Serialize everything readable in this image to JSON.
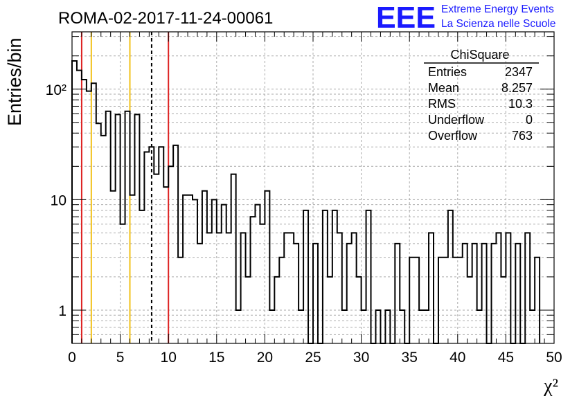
{
  "chart_data": {
    "type": "histogram",
    "title": "ROMA-02-2017-11-24-00061",
    "xlabel": "χ²",
    "ylabel": "Entries/bin",
    "xlim": [
      0,
      50
    ],
    "ylim": [
      0.5,
      330
    ],
    "yscale": "log",
    "grid": true,
    "bin_width": 0.5,
    "x_ticks": [
      0,
      5,
      10,
      15,
      20,
      25,
      30,
      35,
      40,
      45,
      50
    ],
    "x_tick_labels": [
      "0",
      "5",
      "10",
      "15",
      "20",
      "25",
      "30",
      "35",
      "40",
      "45",
      "50"
    ],
    "y_ticks": [
      1,
      10,
      100
    ],
    "y_tick_labels": [
      "1",
      "10",
      "10²"
    ],
    "counts": [
      180,
      148,
      122,
      96,
      113,
      49,
      38,
      63,
      12,
      59,
      6,
      63,
      11,
      59,
      8,
      27,
      30,
      17,
      30,
      13,
      20,
      31,
      3,
      11,
      11,
      10,
      4,
      12,
      5,
      10,
      5,
      9,
      5,
      17,
      1,
      5,
      2,
      7,
      9,
      6,
      12,
      1,
      2,
      3,
      5,
      5,
      4,
      1,
      8,
      0,
      4,
      0,
      8,
      2,
      8,
      5,
      1,
      4,
      5,
      2,
      1,
      8,
      0,
      1,
      0,
      1,
      0,
      4,
      1,
      0,
      3,
      3,
      1,
      1,
      5,
      0,
      3,
      3,
      8,
      3,
      3,
      4,
      2,
      4,
      1,
      4,
      0,
      4,
      5,
      2,
      5,
      0,
      4,
      0,
      5,
      1,
      3
    ],
    "vertical_lines": [
      {
        "x": 1,
        "color": "#dd2222",
        "style": "solid"
      },
      {
        "x": 2,
        "color": "#f2c11a",
        "style": "solid"
      },
      {
        "x": 6,
        "color": "#f2c11a",
        "style": "solid"
      },
      {
        "x": 8.257,
        "color": "#000000",
        "style": "dashed"
      },
      {
        "x": 10,
        "color": "#dd2222",
        "style": "solid"
      }
    ],
    "stats": {
      "title": "ChiSquare",
      "rows": [
        {
          "label": "Entries",
          "value": "2347"
        },
        {
          "label": "Mean",
          "value": "8.257"
        },
        {
          "label": "RMS",
          "value": "10.3"
        },
        {
          "label": "Underflow",
          "value": "0"
        },
        {
          "label": "Overflow",
          "value": "763"
        }
      ]
    },
    "logo": {
      "mark": "EEE",
      "line1": "Extreme Energy Events",
      "line2": "La Scienza nelle Scuole",
      "color": "#1a1aff"
    }
  }
}
